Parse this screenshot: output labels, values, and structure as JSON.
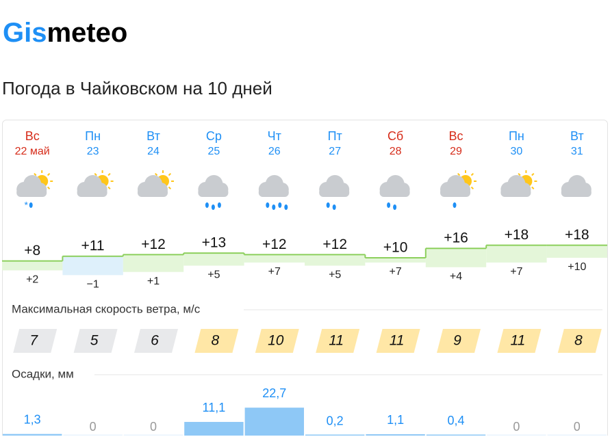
{
  "header": {
    "logo_blue": "Gis",
    "logo_black": "meteo",
    "title": "Погода в Чайковском на 10 дней"
  },
  "days": [
    {
      "weekday": "Вс",
      "date": "22 май",
      "max": {
        "value": 8,
        "label": "+8"
      },
      "min": {
        "value": 2,
        "label": "+2"
      },
      "wind": 7,
      "precip": {
        "value": 1.3,
        "label": "1,3"
      }
    },
    {
      "weekday": "Пн",
      "date": "23",
      "max": {
        "value": 11,
        "label": "+11"
      },
      "min": {
        "value": -1,
        "label": "−1"
      },
      "wind": 5,
      "precip": 0
    },
    {
      "weekday": "Вт",
      "date": "24",
      "max": {
        "value": 12,
        "label": "+12"
      },
      "min": {
        "value": 1,
        "label": "+1"
      },
      "wind": 6,
      "precip": 0
    },
    {
      "weekday": "Ср",
      "date": "25",
      "max": {
        "value": 13,
        "label": "+13"
      },
      "min": {
        "value": 5,
        "label": "+5"
      },
      "wind": 8,
      "precip": {
        "value": 11.1,
        "label": "11,1"
      }
    },
    {
      "weekday": "Чт",
      "date": "26",
      "max": {
        "value": 12,
        "label": "+12"
      },
      "min": {
        "value": 7,
        "label": "+7"
      },
      "wind": 10,
      "precip": {
        "value": 22.7,
        "label": "22,7"
      }
    },
    {
      "weekday": "Пт",
      "date": "27",
      "max": {
        "value": 12,
        "label": "+12"
      },
      "min": {
        "value": 5,
        "label": "+5"
      },
      "wind": 11,
      "precip": {
        "value": 0.2,
        "label": "0,2"
      }
    },
    {
      "weekday": "Сб",
      "date": "28",
      "max": {
        "value": 10,
        "label": "+10"
      },
      "min": {
        "value": 7,
        "label": "+7"
      },
      "wind": 11,
      "precip": {
        "value": 1.1,
        "label": "1,1"
      }
    },
    {
      "weekday": "Вс",
      "date": "29",
      "max": {
        "value": 16,
        "label": "+16"
      },
      "min": {
        "value": 4,
        "label": "+4"
      },
      "wind": 9,
      "precip": {
        "value": 0.4,
        "label": "0,4"
      }
    },
    {
      "weekday": "Пн",
      "date": "30",
      "max": {
        "value": 18,
        "label": "+18"
      },
      "min": {
        "value": 7,
        "label": "+7"
      },
      "wind": 11,
      "precip": 0
    },
    {
      "weekday": "Вт",
      "date": "31",
      "max": {
        "value": 18,
        "label": "+18"
      },
      "min": {
        "value": 10,
        "label": "+10"
      },
      "wind": 8,
      "precip": 0
    }
  ],
  "wind_title": "Максимальная скорость ветра, м/с",
  "precip_title": "Осадки, мм"
}
